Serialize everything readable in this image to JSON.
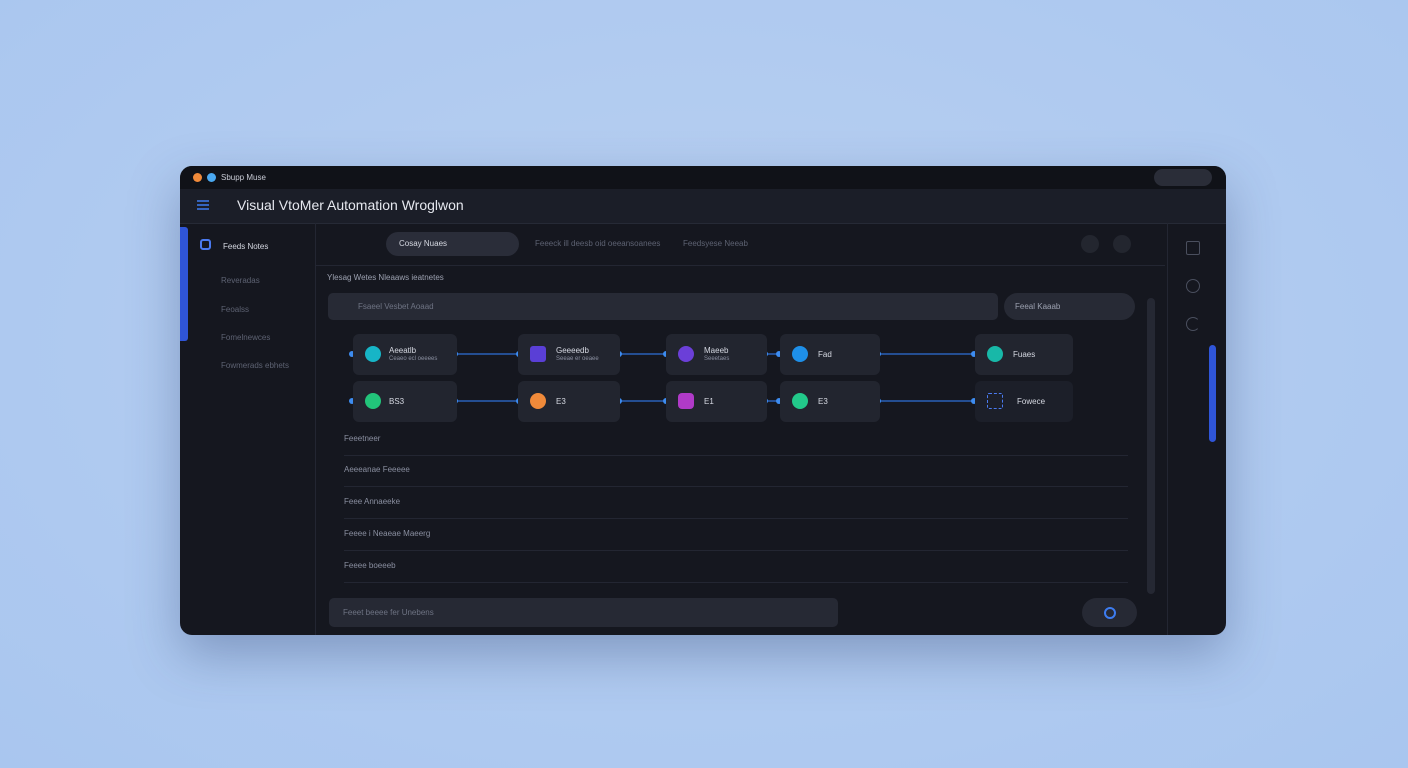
{
  "window": {
    "title": "Sbupp Muse"
  },
  "header": {
    "title": "Visual VtoMer Automation Wroglwon"
  },
  "sidebar": {
    "items": [
      "Feeds Notes",
      "Reveradas",
      "Feoalss",
      "Fomelnewces",
      "Fowmerads ebhets"
    ]
  },
  "toolbar": {
    "dropdown": "Cosay Nuaes",
    "text": "Feeeck ill deesb oid oeeansoanees",
    "link": "Feedsyese Neeab"
  },
  "breadcrumb": "Ylesag Wetes Nleaaws ieatnetes",
  "search": {
    "placeholder": "Fsaeel Vesbet Aoaad",
    "button": "Feeal Kaaab"
  },
  "nodes": {
    "row1": [
      {
        "label": "Aeeatlb",
        "sub": "Ceaeo ecl oeeees"
      },
      {
        "label": "Geeeedb",
        "sub": "Seeae er oeaee"
      },
      {
        "label": "Maeeb",
        "sub": "Seeetaes"
      },
      {
        "label": "Fad"
      },
      {
        "label": "Fuaes"
      }
    ],
    "row2": [
      {
        "label": "BS3"
      },
      {
        "label": "E3"
      },
      {
        "label": "E1"
      },
      {
        "label": "E3"
      },
      {
        "label": "Fowece"
      }
    ]
  },
  "list": [
    "Feeetneer",
    "Aeeeanae Feeeee",
    "Feee Annaeeke",
    "Feeee i Neaeae Maeerg",
    "Feeee boeeeb"
  ],
  "composer": {
    "placeholder": "Feeet beeee fer Unebens"
  }
}
